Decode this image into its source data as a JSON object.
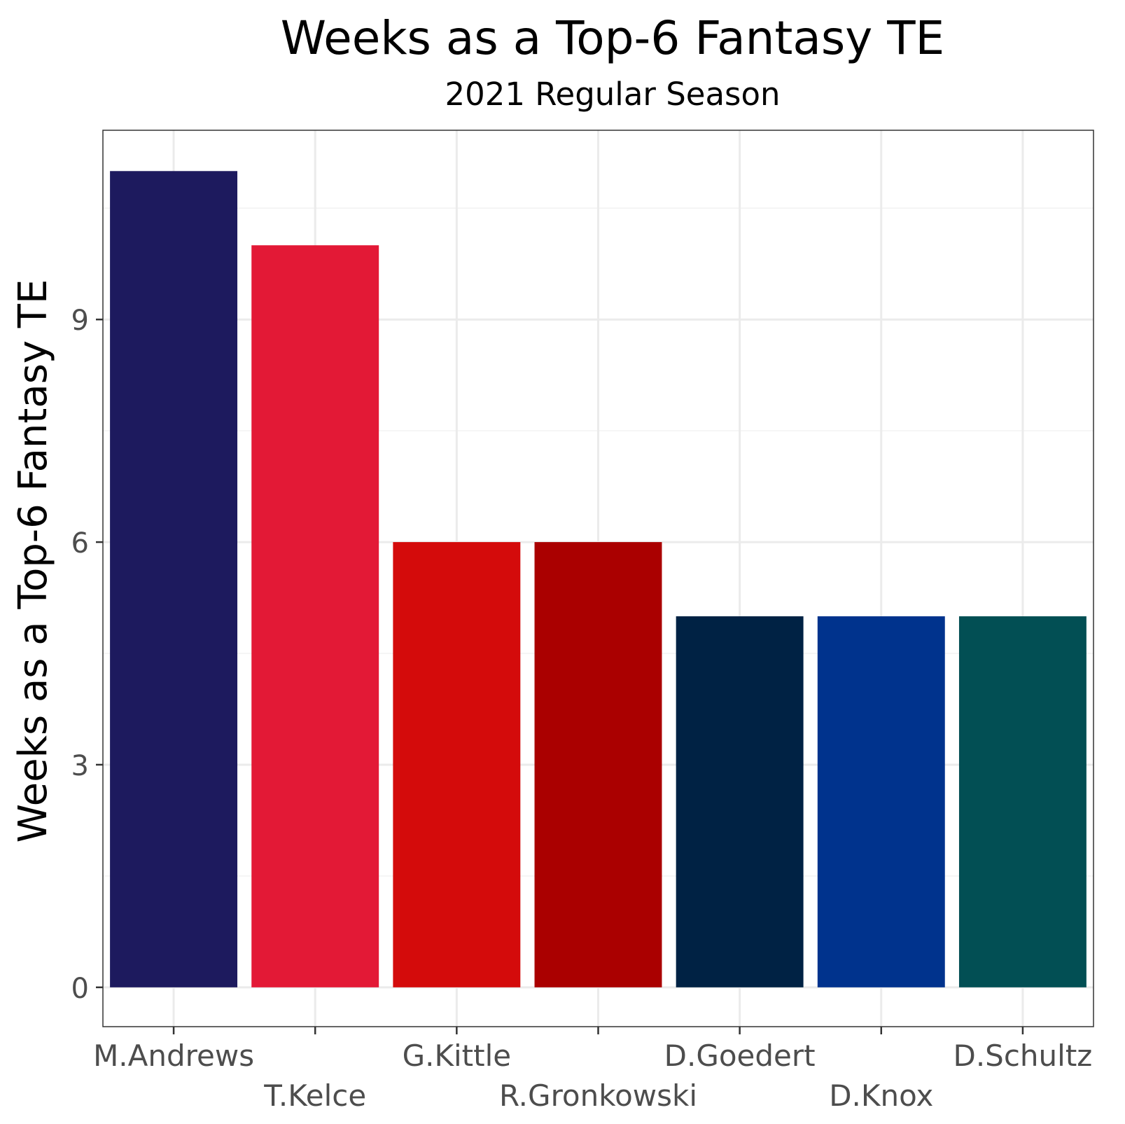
{
  "chart_data": {
    "type": "bar",
    "title": "Weeks as a Top-6 Fantasy TE",
    "subtitle": "2021 Regular Season",
    "xlabel": "",
    "ylabel": "Weeks as a Top-6 Fantasy TE",
    "categories": [
      "M.Andrews",
      "T.Kelce",
      "G.Kittle",
      "R.Gronkowski",
      "D.Goedert",
      "D.Knox",
      "D.Schultz"
    ],
    "values": [
      11,
      10,
      6,
      6,
      5,
      5,
      5
    ],
    "colors": [
      "#1D1A5E",
      "#E31936",
      "#D40B0B",
      "#AA0000",
      "#002244",
      "#00338D",
      "#024F54"
    ],
    "y_ticks": [
      "0",
      "3",
      "6",
      "9"
    ],
    "ylim": [
      -0.53,
      11.55
    ],
    "grid": true,
    "legend": "none"
  }
}
